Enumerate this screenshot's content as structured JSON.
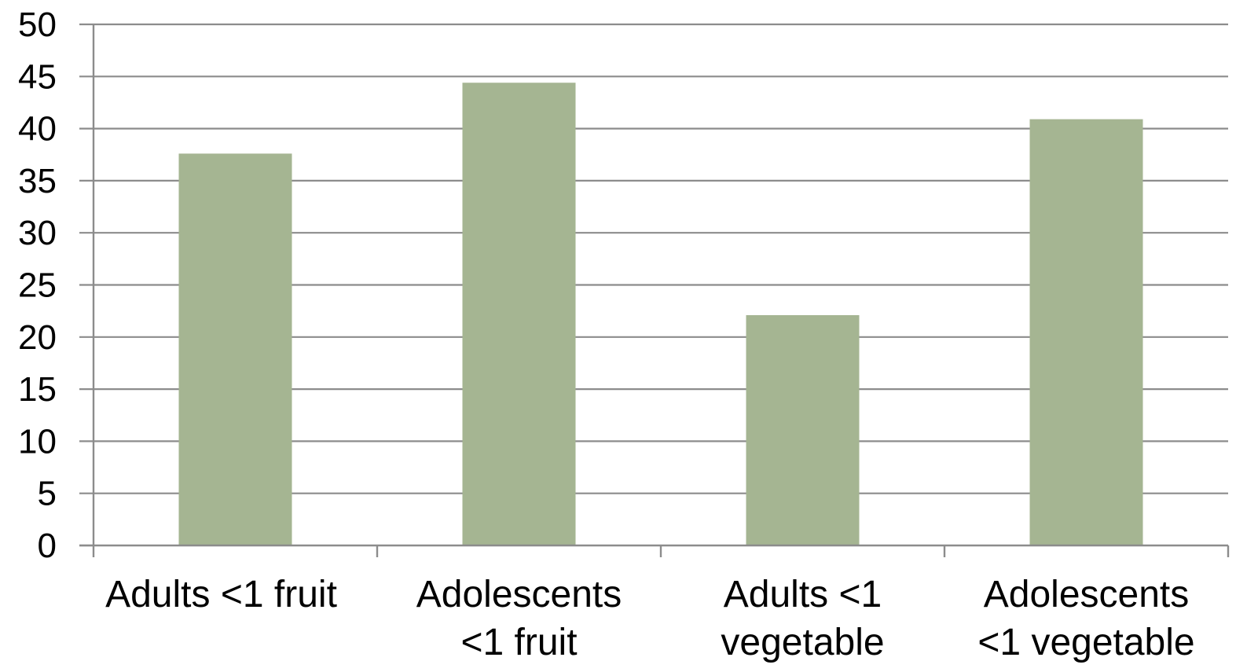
{
  "chart_data": {
    "type": "bar",
    "categories": [
      [
        "Adults <1 fruit"
      ],
      [
        "Adolescents",
        "<1 fruit"
      ],
      [
        "Adults <1",
        "vegetable"
      ],
      [
        "Adolescents",
        "<1 vegetable"
      ]
    ],
    "values": [
      37.6,
      44.4,
      22.1,
      40.9
    ],
    "ylim": [
      0,
      50
    ],
    "y_ticks": [
      0,
      5,
      10,
      15,
      20,
      25,
      30,
      35,
      40,
      45,
      50
    ],
    "title": "",
    "xlabel": "",
    "ylabel": "",
    "grid": true,
    "legend": "none",
    "colors": {
      "bar": "#a5b592",
      "gridline": "#8c8c8c",
      "axis": "#8c8c8c",
      "text": "#000000"
    }
  }
}
